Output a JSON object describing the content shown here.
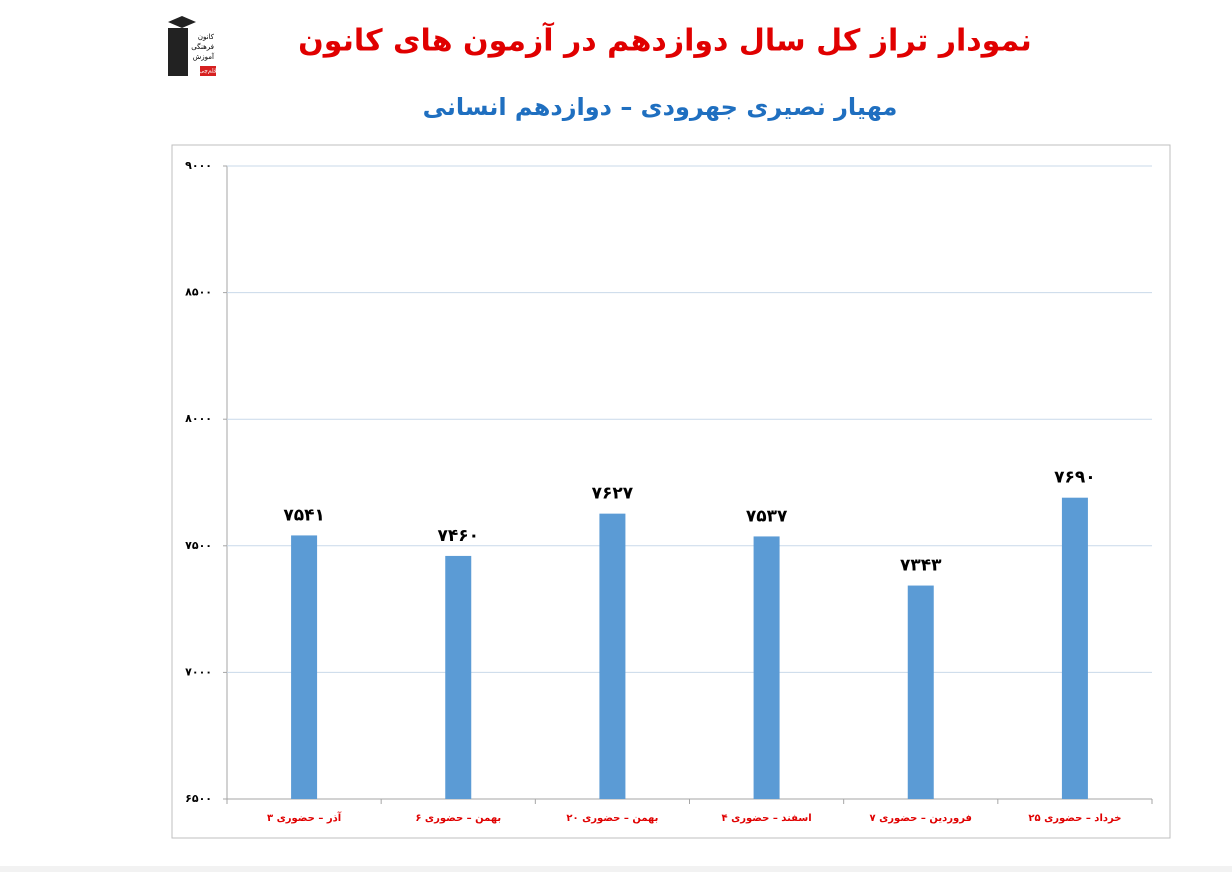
{
  "chart_data": {
    "type": "bar",
    "title": "نمودار تراز کل سال دوازدهم در آزمون های کانون",
    "subtitle": "مهیار نصیری جهرودی – دوازدهم انسانی",
    "categories": [
      "۳ آذر – حضوری",
      "۶ بهمن – حضوری",
      "۲۰ بهمن – حضوری",
      "۴ اسفند – حضوری",
      "۷ فروردین – حضوری",
      "۲۵ خرداد – حضوری"
    ],
    "values": [
      7541,
      7460,
      7627,
      7537,
      7343,
      7690
    ],
    "value_labels": [
      "۷۵۴۱",
      "۷۴۶۰",
      "۷۶۲۷",
      "۷۵۳۷",
      "۷۳۴۳",
      "۷۶۹۰"
    ],
    "color": "#5b9bd5",
    "ylim": [
      6500,
      9000
    ],
    "yticks": [
      {
        "value": 6500,
        "label": "۶۵۰۰"
      },
      {
        "value": 7000,
        "label": "۷۰۰۰"
      },
      {
        "value": 7500,
        "label": "۷۵۰۰"
      },
      {
        "value": 8000,
        "label": "۸۰۰۰"
      },
      {
        "value": 8500,
        "label": "۸۵۰۰"
      },
      {
        "value": 9000,
        "label": "۹۰۰۰"
      }
    ],
    "grid": true
  },
  "logo": {
    "lines": [
      "کانون",
      "فرهنگی",
      "آموزش"
    ],
    "badge": "قلم‌چی"
  }
}
